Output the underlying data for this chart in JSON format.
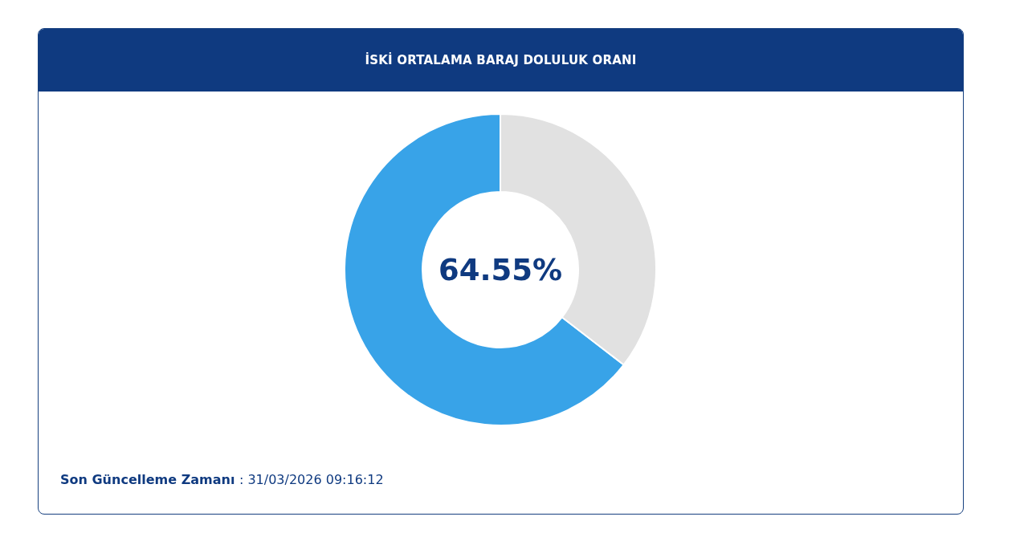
{
  "chart_data": {
    "type": "donut",
    "title": "İSKİ ORTALAMA BARAJ DOLULUK ORANI",
    "categories": [
      null,
      null
    ],
    "values": [
      64.55,
      35.45
    ],
    "colors": [
      "#38a3e8",
      "#e1e1e1"
    ],
    "annotations": [
      "64.55%",
      "Son Güncelleme Zamanı : 31/03/2026 09:16:12"
    ]
  }
}
